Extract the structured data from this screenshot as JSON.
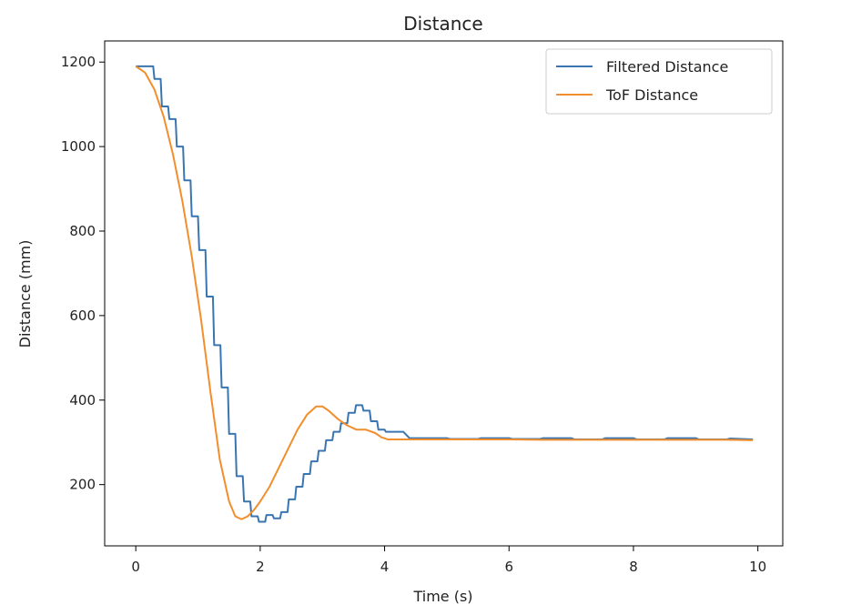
{
  "chart_data": {
    "type": "line",
    "title": "Distance",
    "xlabel": "Time (s)",
    "ylabel": "Distance (mm)",
    "xlim": [
      -0.5,
      10.4
    ],
    "ylim": [
      55,
      1250
    ],
    "xticks": [
      0,
      2,
      4,
      6,
      8,
      10
    ],
    "yticks": [
      200,
      400,
      600,
      800,
      1000,
      1200
    ],
    "grid": false,
    "legend_position": "top-right",
    "series": [
      {
        "name": "Filtered Distance",
        "color": "#3a75b0",
        "x": [
          0,
          0.28,
          0.3,
          0.4,
          0.42,
          0.52,
          0.54,
          0.64,
          0.66,
          0.76,
          0.78,
          0.88,
          0.9,
          1.0,
          1.02,
          1.12,
          1.14,
          1.24,
          1.26,
          1.36,
          1.38,
          1.48,
          1.5,
          1.6,
          1.62,
          1.72,
          1.74,
          1.84,
          1.86,
          1.96,
          1.98,
          2.08,
          2.1,
          2.2,
          2.22,
          2.32,
          2.34,
          2.44,
          2.46,
          2.56,
          2.58,
          2.68,
          2.7,
          2.8,
          2.82,
          2.92,
          2.94,
          3.04,
          3.06,
          3.16,
          3.18,
          3.28,
          3.3,
          3.4,
          3.42,
          3.52,
          3.54,
          3.64,
          3.66,
          3.76,
          3.78,
          3.88,
          3.9,
          4.0,
          4.02,
          4.3,
          4.4,
          4.45,
          5.0,
          5.05,
          5.5,
          5.55,
          6.0,
          6.05,
          6.5,
          6.55,
          7.0,
          7.05,
          7.5,
          7.55,
          8.0,
          8.05,
          8.5,
          8.55,
          9.0,
          9.05,
          9.5,
          9.55,
          9.92
        ],
        "values": [
          1190,
          1190,
          1160,
          1160,
          1095,
          1095,
          1065,
          1065,
          1000,
          1000,
          920,
          920,
          835,
          835,
          755,
          755,
          645,
          645,
          530,
          530,
          430,
          430,
          320,
          320,
          220,
          220,
          160,
          160,
          125,
          125,
          112,
          112,
          128,
          128,
          120,
          120,
          135,
          135,
          165,
          165,
          195,
          195,
          225,
          225,
          255,
          255,
          280,
          280,
          305,
          305,
          325,
          325,
          345,
          345,
          370,
          370,
          388,
          388,
          375,
          375,
          350,
          350,
          330,
          330,
          325,
          325,
          310,
          310,
          310,
          308,
          308,
          310,
          310,
          308,
          308,
          310,
          310,
          307,
          307,
          310,
          310,
          307,
          307,
          310,
          310,
          307,
          307,
          309,
          307
        ]
      },
      {
        "name": "ToF Distance",
        "color": "#f28e2b",
        "x": [
          0,
          0.15,
          0.3,
          0.45,
          0.6,
          0.75,
          0.9,
          1.05,
          1.2,
          1.35,
          1.5,
          1.6,
          1.7,
          1.8,
          1.9,
          2.0,
          2.15,
          2.3,
          2.45,
          2.6,
          2.75,
          2.9,
          3.0,
          3.1,
          3.25,
          3.4,
          3.55,
          3.7,
          3.85,
          3.95,
          4.05,
          4.5,
          5.0,
          5.5,
          6.0,
          6.5,
          7.0,
          7.5,
          8.0,
          8.5,
          9.0,
          9.5,
          9.92
        ],
        "values": [
          1190,
          1175,
          1135,
          1070,
          980,
          870,
          740,
          590,
          420,
          260,
          160,
          125,
          118,
          125,
          140,
          160,
          195,
          240,
          285,
          330,
          365,
          385,
          385,
          375,
          355,
          340,
          330,
          330,
          322,
          312,
          307,
          307,
          307,
          307,
          307,
          306,
          306,
          306,
          306,
          306,
          306,
          306,
          305
        ]
      }
    ]
  }
}
